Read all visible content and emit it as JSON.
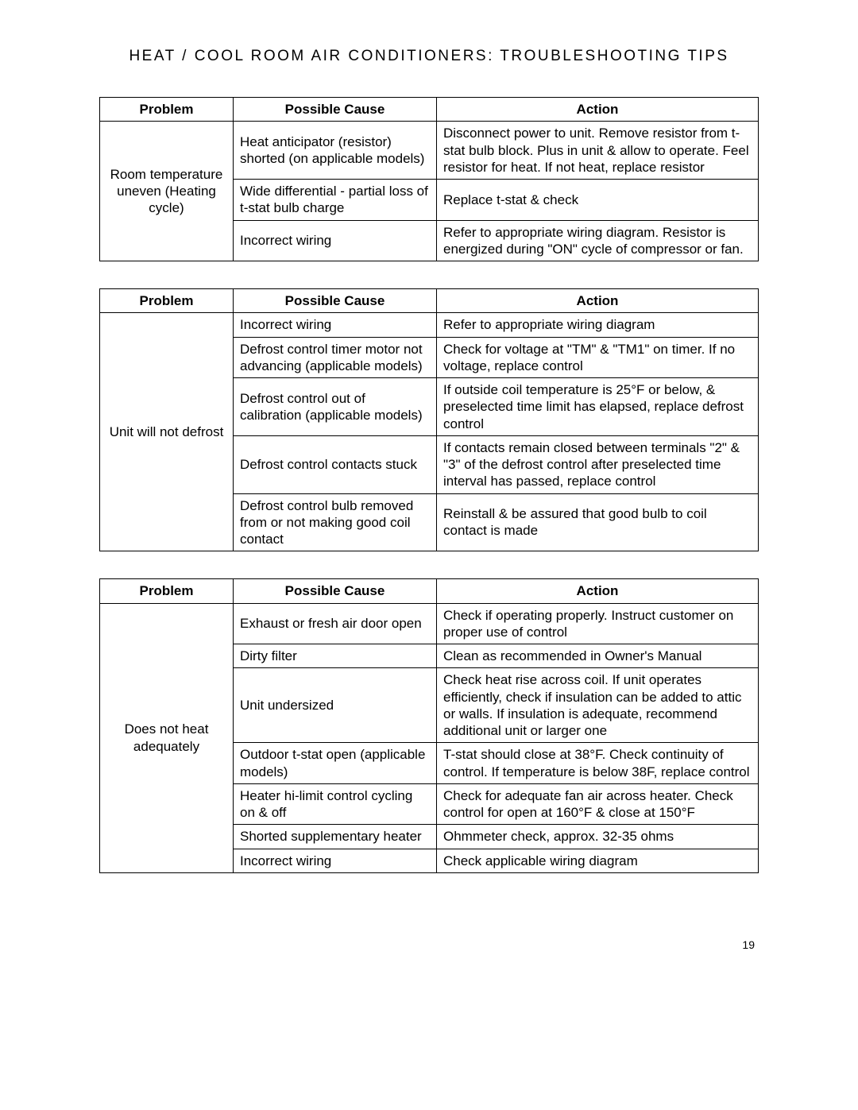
{
  "title": "HEAT / COOL ROOM AIR CONDITIONERS: TROUBLESHOOTING TIPS",
  "headers": {
    "problem": "Problem",
    "cause": "Possible Cause",
    "action": "Action"
  },
  "page_number": "19",
  "tables": [
    {
      "problem": "Room temperature uneven (Heating cycle)",
      "rows": [
        {
          "cause": "Heat anticipator (resistor) shorted (on applicable models)",
          "action": "Disconnect power to unit. Remove resistor from t-stat bulb block. Plus in unit & allow to operate. Feel resistor for heat. If not heat, replace resistor"
        },
        {
          "cause": "Wide differential - partial loss of t-stat bulb charge",
          "action": "Replace t-stat & check"
        },
        {
          "cause": "Incorrect wiring",
          "action": "Refer to appropriate wiring diagram. Resistor is energized during \"ON\" cycle of compressor or fan."
        }
      ]
    },
    {
      "problem": "Unit will not defrost",
      "rows": [
        {
          "cause": "Incorrect wiring",
          "action": "Refer to appropriate wiring diagram"
        },
        {
          "cause": "Defrost control timer motor not advancing (applicable models)",
          "action": "Check for voltage at \"TM\" & \"TM1\" on timer. If no voltage, replace control"
        },
        {
          "cause": "Defrost control out of calibration (applicable models)",
          "action": "If outside coil temperature is 25°F or below, & preselected time limit has elapsed, replace defrost control"
        },
        {
          "cause": "Defrost control contacts stuck",
          "action": "If contacts remain closed between terminals \"2\" & \"3\" of the defrost control after preselected time interval has passed, replace control"
        },
        {
          "cause": "Defrost control bulb removed from or not making good coil contact",
          "action": "Reinstall & be assured that good bulb to coil contact is made"
        }
      ]
    },
    {
      "problem": "Does not heat adequately",
      "rows": [
        {
          "cause": "Exhaust or fresh air door open",
          "action": "Check if operating properly. Instruct customer on proper use of control"
        },
        {
          "cause": "Dirty filter",
          "action": "Clean as recommended in Owner's Manual"
        },
        {
          "cause": "Unit undersized",
          "action": "Check heat rise across coil. If unit operates efficiently, check if insulation can be added to attic or walls. If insulation is adequate, recommend additional unit or larger one"
        },
        {
          "cause": "Outdoor t-stat open (applicable models)",
          "action": "T-stat should close at 38°F. Check continuity of control. If temperature is below 38F, replace control"
        },
        {
          "cause": "Heater hi-limit control cycling on & off",
          "action": "Check for adequate fan air across heater. Check control for open at 160°F & close at 150°F"
        },
        {
          "cause": "Shorted supplementary heater",
          "action": "Ohmmeter check, approx. 32-35 ohms"
        },
        {
          "cause": "Incorrect wiring",
          "action": "Check applicable wiring diagram"
        }
      ]
    }
  ]
}
